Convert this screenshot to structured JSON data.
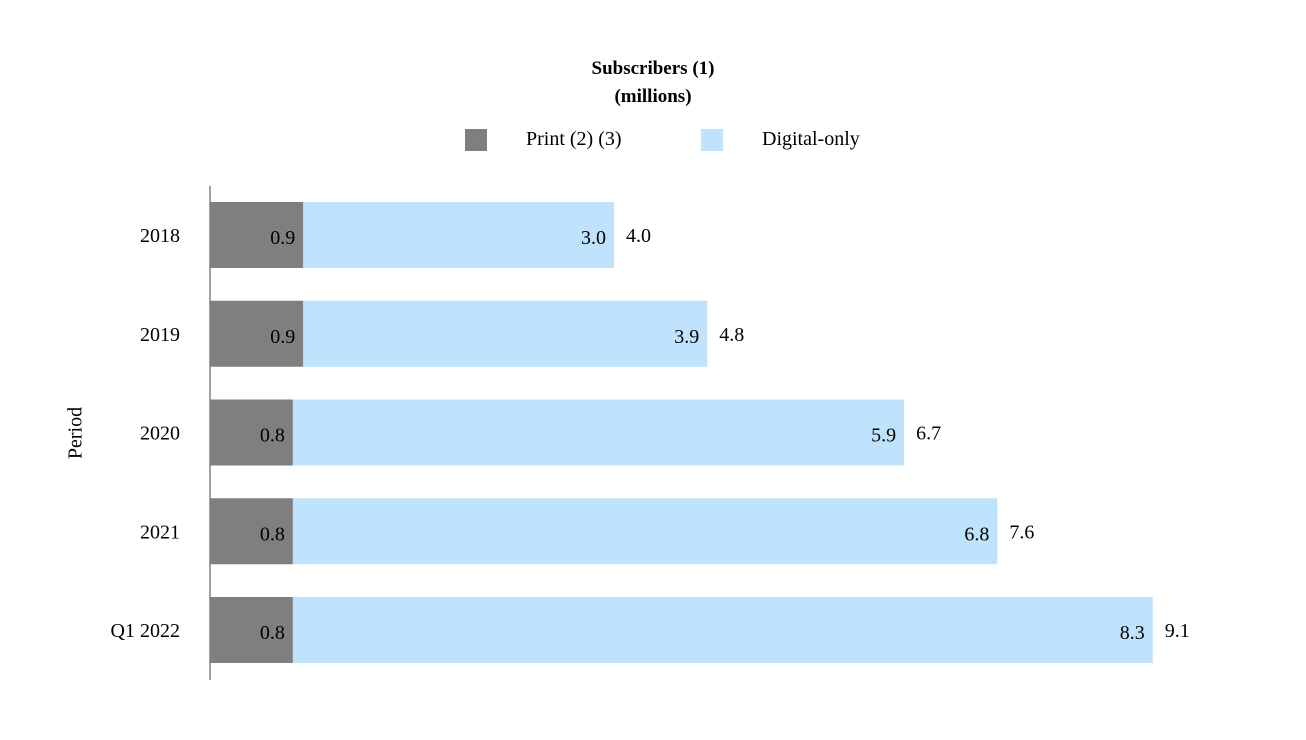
{
  "chart_data": {
    "type": "bar",
    "orientation": "horizontal",
    "stacked": true,
    "title": "Subscribers (1)",
    "subtitle": "(millions)",
    "xlabel": "",
    "ylabel": "Period",
    "categories": [
      "2018",
      "2019",
      "2020",
      "2021",
      "Q1 2022"
    ],
    "series": [
      {
        "name": "Print (2) (3)",
        "values": [
          0.9,
          0.9,
          0.8,
          0.8,
          0.8
        ],
        "labels": [
          "0.9",
          "0.9",
          "0.8",
          "0.8",
          "0.8"
        ],
        "color": "#7f7f7f"
      },
      {
        "name": "Digital-only",
        "values": [
          3.0,
          3.9,
          5.9,
          6.8,
          8.3
        ],
        "labels": [
          "3.0",
          "3.9",
          "5.9",
          "6.8",
          "8.3"
        ],
        "color": "#bfe3fc"
      }
    ],
    "totals": [
      "4.0",
      "4.8",
      "6.7",
      "7.6",
      "9.1"
    ],
    "xlim": [
      0,
      9.1
    ],
    "grid": false,
    "legend": "top"
  }
}
